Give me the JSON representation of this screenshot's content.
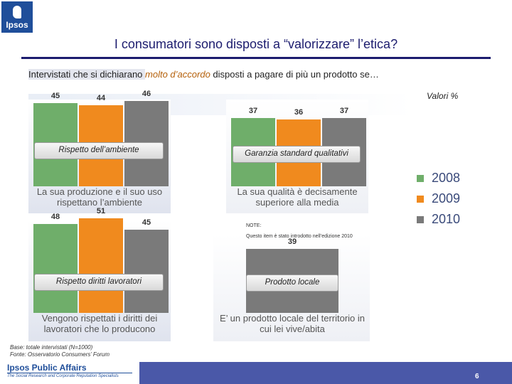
{
  "header": {
    "logo_text": "Ipsos",
    "title": "I consumatori sono disposti a “valorizzare” l’etica?",
    "subtitle_pre": "Intervistati che si dichiarano ",
    "subtitle_em": "molto d’accordo",
    "subtitle_post": " disposti a pagare di più un prodotto se…",
    "units_label": "Valori %"
  },
  "colors": {
    "y2008": "#6fae6a",
    "y2009": "#f08a1e",
    "y2010": "#7a7a7a",
    "navy": "#1c1c6e"
  },
  "chart_data": [
    {
      "type": "bar",
      "title": "Rispetto dell’ambiente",
      "description": [
        "La sua produzione e il suo uso",
        "rispettano l’ambiente"
      ],
      "categories": [
        "2008",
        "2009",
        "2010"
      ],
      "values": [
        45,
        44,
        46
      ],
      "ylim": [
        0,
        60
      ]
    },
    {
      "type": "bar",
      "title": "Garanzia standard qualitativi",
      "description": [
        "La sua qualità è decisamente",
        "superiore alla media"
      ],
      "categories": [
        "2008",
        "2009",
        "2010"
      ],
      "values": [
        37,
        36,
        37
      ],
      "ylim": [
        0,
        60
      ]
    },
    {
      "type": "bar",
      "title": "Rispetto diritti lavoratori",
      "description": [
        "Vengono rispettati i diritti dei",
        "lavoratori che lo producono"
      ],
      "categories": [
        "2008",
        "2009",
        "2010"
      ],
      "values": [
        48,
        51,
        45
      ],
      "ylim": [
        0,
        60
      ]
    },
    {
      "type": "bar",
      "title": "Prodotto locale",
      "description": [
        "E’ un prodotto locale del territorio in",
        "cui lei vive/abita"
      ],
      "categories": [
        "2010"
      ],
      "values": [
        39
      ],
      "ylim": [
        0,
        60
      ]
    }
  ],
  "legend": [
    "2008",
    "2009",
    "2010"
  ],
  "note": {
    "title": "NOTE:",
    "text": "Questo item è stato introdotto nell’edizione 2010"
  },
  "footer": {
    "base": "Base: totale intervistati (N=1000)",
    "source": "Fonte: Osservatorio Consumers’ Forum",
    "brand": "Ipsos Public Affairs",
    "tagline": "The Social Research and Corporate Reputation Specialists",
    "page_number": "6"
  }
}
